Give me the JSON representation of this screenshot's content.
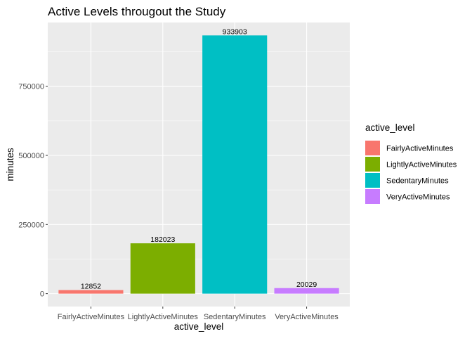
{
  "chart_data": {
    "type": "bar",
    "title": "Active Levels througout the Study",
    "xlabel": "active_level",
    "ylabel": "minutes",
    "categories": [
      "FairlyActiveMinutes",
      "LightlyActiveMinutes",
      "SedentaryMinutes",
      "VeryActiveMinutes"
    ],
    "values": [
      12852,
      182023,
      933903,
      20029
    ],
    "data_labels": [
      "12852",
      "182023",
      "933903",
      "20029"
    ],
    "colors": [
      "#F8766D",
      "#7CAE00",
      "#00BFC4",
      "#C77CFF"
    ],
    "ylim": [
      -46695,
      980598
    ],
    "y_ticks": [
      0,
      250000,
      500000,
      750000
    ],
    "y_tick_labels": [
      "0",
      "250000",
      "500000",
      "750000"
    ],
    "grid": true,
    "legend": {
      "title": "active_level",
      "position": "right",
      "entries": [
        "FairlyActiveMinutes",
        "LightlyActiveMinutes",
        "SedentaryMinutes",
        "VeryActiveMinutes"
      ]
    },
    "panel_background": "#EBEBEB",
    "gridline_color": "#FFFFFF"
  }
}
